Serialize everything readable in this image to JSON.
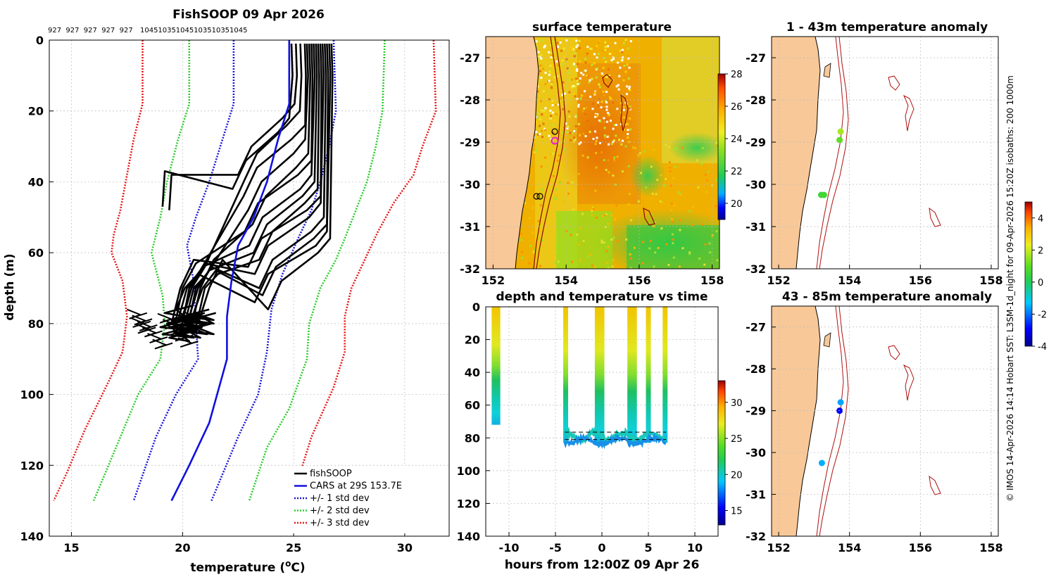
{
  "colors": {
    "land": "#f8c898",
    "frame": "#000000",
    "grid": "#bbbbbb",
    "cars": "#1010e0",
    "std1": "#1a1ad8",
    "std2": "#2ccc2c",
    "std3": "#e81a1a",
    "contour": "#b01010"
  },
  "watermark": "© IMOS 14-Apr-2026 14:14 Hobart SST: L3SM-1d_night for 09-Apr-2026 15:20Z isobaths: 200  1000m",
  "chart_data": [
    {
      "id": "profile",
      "type": "line",
      "title": "FishSOOP 09 Apr 2026",
      "xlabel": "temperature (",
      "xlabel_sup": "o",
      "xlabel_tail": "C)",
      "ylabel": "depth (m)",
      "xlim": [
        14,
        32
      ],
      "ylim": [
        0,
        140
      ],
      "xticks": [
        "15",
        "20",
        "25",
        "30"
      ],
      "xtick_values": [
        15,
        20,
        25,
        30
      ],
      "yticks": [
        "0",
        "20",
        "40",
        "60",
        "80",
        "100",
        "120",
        "140"
      ],
      "ytick_values": [
        0,
        20,
        40,
        60,
        80,
        100,
        120,
        140
      ],
      "vessel_ids": [
        "927",
        "927",
        "927",
        "927",
        "927",
        "1045",
        "1035",
        "1045",
        "1035",
        "1035",
        "1045"
      ],
      "legend": [
        {
          "label": "fishSOOP",
          "style": "black"
        },
        {
          "label": "CARS at 29S 153.7E",
          "style": "cars"
        },
        {
          "label": "+/- 1 std dev",
          "style": "std1"
        },
        {
          "label": "+/- 2 std dev",
          "style": "std2"
        },
        {
          "label": "+/- 3 std dev",
          "style": "std3"
        }
      ],
      "cars": [
        [
          24.8,
          0
        ],
        [
          24.8,
          18
        ],
        [
          24.3,
          28
        ],
        [
          23.8,
          40
        ],
        [
          23.2,
          50
        ],
        [
          22.5,
          58
        ],
        [
          22.2,
          68
        ],
        [
          22.0,
          78
        ],
        [
          22.0,
          90
        ],
        [
          21.2,
          108
        ],
        [
          20.3,
          120
        ],
        [
          19.5,
          130
        ]
      ],
      "std1_low": [
        [
          22.3,
          0
        ],
        [
          22.3,
          18
        ],
        [
          21.8,
          28
        ],
        [
          21.2,
          40
        ],
        [
          20.6,
          50
        ],
        [
          20.2,
          58
        ],
        [
          20.5,
          68
        ],
        [
          20.6,
          80
        ],
        [
          20.7,
          90
        ],
        [
          19.7,
          100
        ],
        [
          18.8,
          112
        ],
        [
          17.8,
          130
        ]
      ],
      "std1_high": [
        [
          26.8,
          0
        ],
        [
          26.9,
          20
        ],
        [
          26.6,
          30
        ],
        [
          26.2,
          40
        ],
        [
          25.8,
          48
        ],
        [
          25.2,
          56
        ],
        [
          24.5,
          66
        ],
        [
          24.0,
          76
        ],
        [
          23.8,
          88
        ],
        [
          23.4,
          100
        ],
        [
          22.5,
          112
        ],
        [
          21.3,
          130
        ]
      ],
      "std2_low": [
        [
          20.3,
          0
        ],
        [
          20.3,
          18
        ],
        [
          19.8,
          28
        ],
        [
          19.3,
          40
        ],
        [
          19.0,
          50
        ],
        [
          18.6,
          60
        ],
        [
          19.1,
          72
        ],
        [
          19.2,
          80
        ],
        [
          19.0,
          90
        ],
        [
          18.0,
          100
        ],
        [
          17.0,
          115
        ],
        [
          16.0,
          130
        ]
      ],
      "std2_high": [
        [
          29.1,
          0
        ],
        [
          29.0,
          20
        ],
        [
          28.7,
          30
        ],
        [
          28.3,
          40
        ],
        [
          27.8,
          48
        ],
        [
          27.3,
          56
        ],
        [
          26.9,
          62
        ],
        [
          26.2,
          70
        ],
        [
          25.7,
          80
        ],
        [
          25.6,
          90
        ],
        [
          24.8,
          104
        ],
        [
          23.8,
          115
        ],
        [
          23.0,
          130
        ]
      ],
      "std3_low": [
        [
          18.2,
          0
        ],
        [
          18.2,
          18
        ],
        [
          17.8,
          28
        ],
        [
          17.5,
          38
        ],
        [
          17.2,
          48
        ],
        [
          16.9,
          55
        ],
        [
          16.8,
          60
        ],
        [
          17.3,
          68
        ],
        [
          17.5,
          78
        ],
        [
          17.3,
          88
        ],
        [
          16.7,
          96
        ],
        [
          15.6,
          110
        ],
        [
          14.8,
          122
        ],
        [
          14.2,
          130
        ]
      ],
      "std3_high": [
        [
          31.3,
          0
        ],
        [
          31.4,
          20
        ],
        [
          30.8,
          30
        ],
        [
          30.4,
          38
        ],
        [
          29.5,
          46
        ],
        [
          28.8,
          54
        ],
        [
          28.2,
          62
        ],
        [
          27.6,
          70
        ],
        [
          27.3,
          78
        ],
        [
          27.3,
          88
        ],
        [
          26.8,
          98
        ],
        [
          25.8,
          112
        ],
        [
          24.9,
          130
        ]
      ],
      "profile_starts": [
        24.9,
        25.1,
        25.3,
        25.5,
        25.6,
        25.7,
        25.8,
        25.9,
        26.0,
        26.1,
        26.2,
        26.3,
        26.4,
        26.5,
        26.6,
        26.7
      ],
      "profile_deep": [
        19.2,
        19.5,
        19.8,
        19.6,
        19.9,
        20.2,
        19.4,
        19.7,
        20.0,
        20.4,
        19.3,
        19.8,
        20.1,
        20.3,
        19.5,
        20.6
      ],
      "profile_tc": [
        28,
        24,
        26,
        30,
        34,
        38,
        40,
        44,
        46,
        48,
        50,
        52,
        56,
        58,
        60,
        62
      ],
      "profile_bottoms": [
        47,
        48,
        80,
        81,
        82,
        83,
        84,
        85,
        84,
        83,
        82,
        81,
        80,
        79,
        78,
        80
      ]
    },
    {
      "id": "sst_map",
      "type": "heatmap",
      "title": "surface temperature",
      "xlim": [
        151.8,
        158.2
      ],
      "ylim": [
        -32,
        -26.5
      ],
      "xticks": [
        "152",
        "154",
        "156",
        "158"
      ],
      "xtick_values": [
        152,
        154,
        156,
        158
      ],
      "yticks": [
        "-27",
        "-28",
        "-29",
        "-30",
        "-31",
        "-32"
      ],
      "ytick_values": [
        -27,
        -28,
        -29,
        -30,
        -31,
        -32
      ],
      "colorbar": {
        "min": 19,
        "max": 28,
        "ticks": [
          "28",
          "26",
          "24",
          "22",
          "20"
        ],
        "tick_values": [
          28,
          26,
          24,
          22,
          20
        ]
      }
    },
    {
      "id": "anom_upper",
      "type": "scatter",
      "title": "1 - 43m temperature anomaly",
      "xlim": [
        151.8,
        158.2
      ],
      "ylim": [
        -32,
        -26.5
      ],
      "xticks": [
        "152",
        "154",
        "156",
        "158"
      ],
      "xtick_values": [
        152,
        154,
        156,
        158
      ],
      "yticks": [
        "-27",
        "-28",
        "-29",
        "-30",
        "-31",
        "-32"
      ],
      "ytick_values": [
        -27,
        -28,
        -29,
        -30,
        -31,
        -32
      ],
      "points": [
        {
          "lon": 153.75,
          "lat": -28.75,
          "anom": 1.7
        },
        {
          "lon": 153.72,
          "lat": -28.95,
          "anom": 1.0
        },
        {
          "lon": 153.2,
          "lat": -30.25,
          "anom": 0.6
        },
        {
          "lon": 153.28,
          "lat": -30.25,
          "anom": 0.6
        }
      ],
      "colorbar": {
        "min": -4,
        "max": 5,
        "ticks": [
          "4",
          "2",
          "0",
          "-2",
          "-4"
        ],
        "tick_values": [
          4,
          2,
          0,
          -2,
          -4
        ]
      }
    },
    {
      "id": "anom_lower",
      "type": "scatter",
      "title": "43 - 85m temperature anomaly",
      "xlim": [
        151.8,
        158.2
      ],
      "ylim": [
        -32,
        -26.5
      ],
      "xticks": [
        "152",
        "154",
        "156",
        "158"
      ],
      "xtick_values": [
        152,
        154,
        156,
        158
      ],
      "yticks": [
        "-27",
        "-28",
        "-29",
        "-30",
        "-31",
        "-32"
      ],
      "ytick_values": [
        -27,
        -28,
        -29,
        -30,
        -31,
        -32
      ],
      "points": [
        {
          "lon": 153.75,
          "lat": -28.8,
          "anom": -1.6
        },
        {
          "lon": 153.72,
          "lat": -29.0,
          "anom": -3.0
        },
        {
          "lon": 153.22,
          "lat": -30.25,
          "anom": -1.5
        }
      ]
    },
    {
      "id": "time_depth",
      "type": "scatter",
      "title": "depth and temperature vs time",
      "xlabel": "hours from 12:00Z 09 Apr 26",
      "xlim": [
        -12.5,
        12.5
      ],
      "ylim": [
        0,
        140
      ],
      "xticks": [
        "-10",
        "-5",
        "0",
        "5",
        "10"
      ],
      "xtick_values": [
        -10,
        -5,
        0,
        5,
        10
      ],
      "yticks": [
        "0",
        "20",
        "40",
        "60",
        "80",
        "100",
        "120",
        "140"
      ],
      "ytick_values": [
        0,
        20,
        40,
        60,
        80,
        100,
        120,
        140
      ],
      "casts": [
        {
          "t0": -11.6,
          "t1": -11.2,
          "bottom": 72
        },
        {
          "t0": -4.0,
          "t1": 6.9,
          "bottom": 83
        }
      ],
      "verticals": [
        -11.6,
        -11.2,
        -3.9,
        -0.5,
        0.0,
        3.0,
        3.5,
        5.0,
        6.8
      ],
      "colorbar": {
        "min": 13,
        "max": 33,
        "ticks": [
          "30",
          "25",
          "20",
          "15"
        ],
        "tick_values": [
          30,
          25,
          20,
          15
        ]
      }
    }
  ]
}
